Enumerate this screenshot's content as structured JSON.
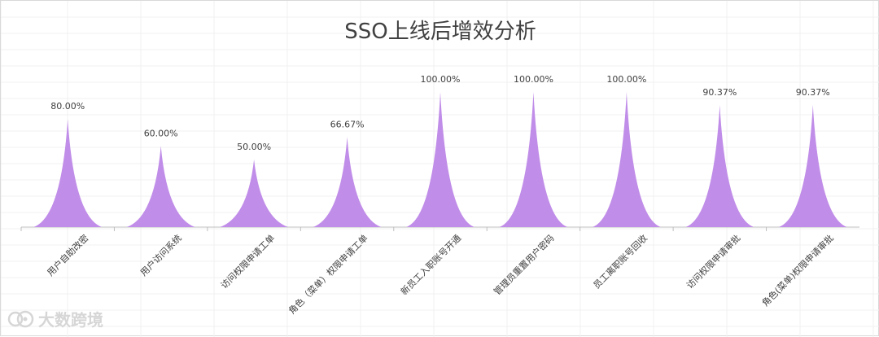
{
  "chart_data": {
    "type": "bar",
    "title": "SSO上线后增效分析",
    "categories": [
      "用户自助改密",
      "用户访问系统",
      "访问权限申请工单",
      "角色（菜单）权限申请工单",
      "新员工入职账号开通",
      "管理员重置用户密码",
      "员工离职账号回收",
      "访问权限申请审批",
      "角色(菜单)权限申请审批"
    ],
    "values": [
      80.0,
      60.0,
      50.0,
      66.67,
      100.0,
      100.0,
      100.0,
      90.37,
      90.37
    ],
    "labels": [
      "80.00%",
      "60.00%",
      "50.00%",
      "66.67%",
      "100.00%",
      "100.00%",
      "100.00%",
      "90.37%",
      "90.37%"
    ],
    "ylim": [
      0,
      100
    ],
    "grid": true,
    "legend": "none",
    "colors": {
      "fill": "#c08de8",
      "axis": "#bfbfbf",
      "grid": "#f0f0f0",
      "title": "#404040",
      "label": "#404040"
    }
  },
  "watermark": {
    "text": "大数跨境",
    "icon": "brand-icon"
  }
}
